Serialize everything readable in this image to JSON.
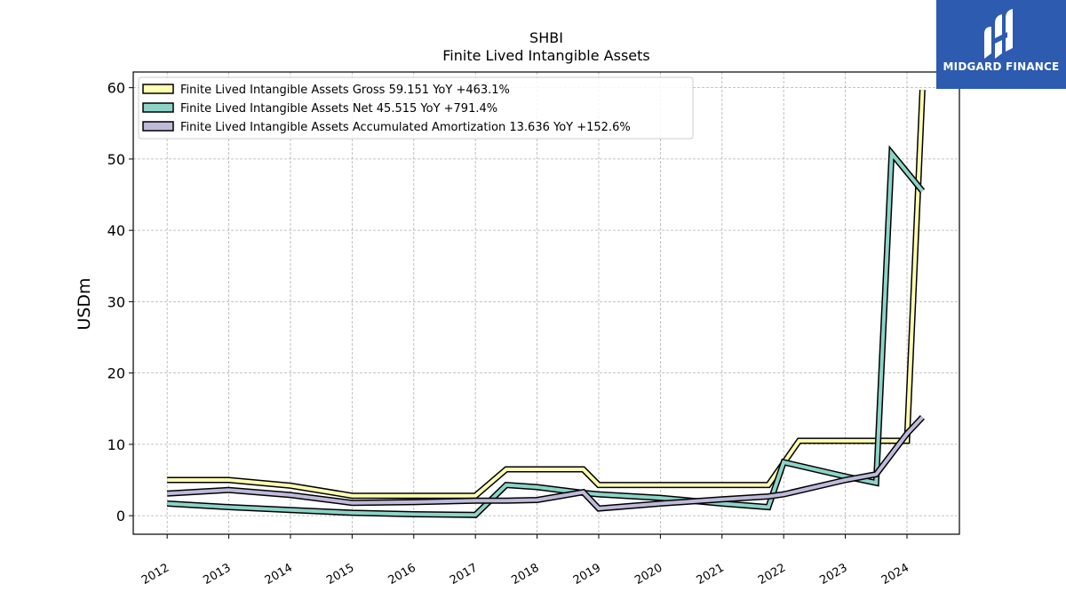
{
  "brand": {
    "name": "MIDGARD FINANCE",
    "bg_color": "#2d5bb0",
    "icon": "midgard-logo-mark"
  },
  "chart_data": {
    "type": "line",
    "title": "SHBI",
    "subtitle": "Finite Lived Intangible Assets",
    "ylabel": "USDm",
    "xlabel": "",
    "ylim": [
      -2.6,
      62.2
    ],
    "xlim": [
      2011.45,
      2024.85
    ],
    "yticks": [
      0,
      10,
      20,
      30,
      40,
      50,
      60
    ],
    "xticks": [
      "2012",
      "2013",
      "2014",
      "2015",
      "2016",
      "2017",
      "2018",
      "2019",
      "2020",
      "2021",
      "2022",
      "2023",
      "2024"
    ],
    "grid": true,
    "legend_position": "top-left",
    "series": [
      {
        "name": "Finite Lived Intangible Assets Gross  59.151 YoY +463.1%",
        "color": "#ffffb3",
        "x": [
          2012.0,
          2013.0,
          2014.0,
          2015.0,
          2016.0,
          2017.0,
          2017.5,
          2018.0,
          2018.75,
          2019.0,
          2020.0,
          2021.0,
          2021.75,
          2022.25,
          2023.0,
          2023.75,
          2024.0,
          2024.25
        ],
        "y": [
          5.0,
          5.0,
          4.2,
          2.8,
          2.8,
          2.8,
          6.5,
          6.5,
          6.5,
          4.3,
          4.3,
          4.3,
          4.3,
          10.5,
          10.5,
          10.5,
          10.5,
          59.7
        ]
      },
      {
        "name": "Finite Lived Intangible Assets Net  45.515 YoY +791.4%",
        "color": "#8dd3c7",
        "x": [
          2012.0,
          2013.0,
          2014.0,
          2015.0,
          2016.0,
          2017.0,
          2017.5,
          2018.0,
          2018.75,
          2019.0,
          2020.0,
          2021.0,
          2021.75,
          2022.0,
          2023.0,
          2023.5,
          2023.75,
          2024.25
        ],
        "y": [
          1.7,
          1.2,
          0.8,
          0.4,
          0.2,
          0.1,
          4.3,
          4.0,
          3.2,
          3.0,
          2.5,
          1.7,
          1.2,
          7.5,
          5.5,
          4.6,
          50.8,
          45.5
        ]
      },
      {
        "name": "Finite Lived Intangible Assets Accumulated Amortization  13.636 YoY +152.6%",
        "color": "#bebada",
        "x": [
          2012.0,
          2013.0,
          2014.0,
          2015.0,
          2016.0,
          2017.0,
          2017.5,
          2018.0,
          2018.75,
          2019.0,
          2020.0,
          2021.0,
          2021.75,
          2022.0,
          2023.0,
          2023.5,
          2024.0,
          2024.25
        ],
        "y": [
          3.1,
          3.6,
          2.9,
          1.8,
          1.9,
          2.1,
          2.1,
          2.2,
          3.3,
          1.0,
          1.7,
          2.3,
          2.7,
          3.0,
          5.0,
          5.8,
          11.5,
          13.8
        ]
      }
    ]
  }
}
